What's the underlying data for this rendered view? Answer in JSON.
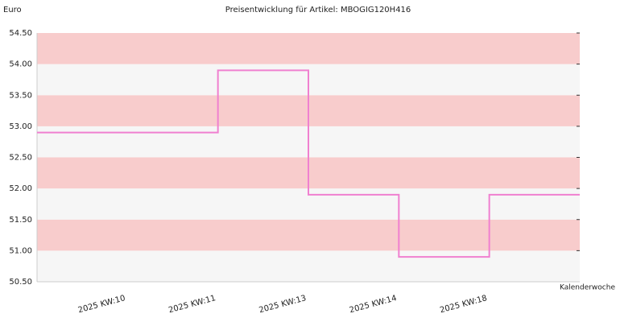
{
  "chart_data": {
    "type": "step",
    "title": "Preisentwicklung für Artikel: MBOGIG120H416",
    "y_label": "Euro",
    "x_label": "Kalenderwoche",
    "categories": [
      null,
      "2025 KW:10",
      "2025 KW:11",
      "2025 KW:13",
      "2025 KW:14",
      "2025 KW:18"
    ],
    "values": [
      52.9,
      52.9,
      53.9,
      51.9,
      50.9,
      51.9
    ],
    "color": "#f080d0",
    "band_colors": [
      "#f8cccc",
      "#f6f6f6"
    ],
    "ylim": [
      50.5,
      54.5
    ],
    "yticks": [
      {
        "value": 50.5,
        "label": "50.50"
      },
      {
        "value": 51,
        "label": "51.00"
      },
      {
        "value": 51.5,
        "label": "51.50"
      },
      {
        "value": 52,
        "label": "52.00"
      },
      {
        "value": 52.5,
        "label": "52.50"
      },
      {
        "value": 53,
        "label": "53.00"
      },
      {
        "value": 53.5,
        "label": "53.50"
      },
      {
        "value": 54,
        "label": "54.00"
      },
      {
        "value": 54.5,
        "label": "54.50"
      }
    ]
  }
}
